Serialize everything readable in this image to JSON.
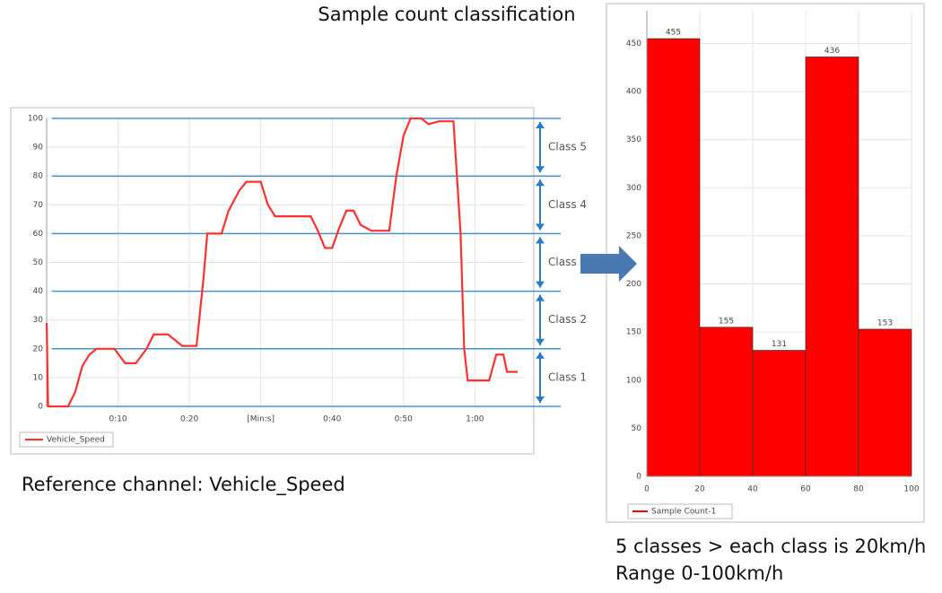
{
  "title": "Sample count classification",
  "caption_left": "Reference channel: Vehicle_Speed",
  "caption_right": [
    "5 classes > each class is 20km/h",
    "Range 0-100km/h"
  ],
  "chart_data": [
    {
      "type": "line",
      "x": [
        0,
        0.2,
        3,
        4,
        5,
        6,
        7,
        9.5,
        11,
        12.5,
        14,
        15,
        17,
        19,
        21,
        22,
        22.5,
        24.5,
        25.5,
        27,
        28,
        30,
        31,
        32,
        37,
        38,
        39,
        40,
        41,
        42,
        43,
        44,
        45.5,
        48,
        49,
        50,
        51,
        52.5,
        53.5,
        55,
        57,
        58,
        58.5,
        59,
        62,
        63,
        64,
        64.5,
        66
      ],
      "series": [
        {
          "name": "Vehicle_Speed",
          "color": "#ff3030",
          "values": [
            29,
            0,
            0,
            5,
            14,
            18,
            20,
            20,
            15,
            15,
            20,
            25,
            25,
            21,
            21,
            45,
            60,
            60,
            68,
            75,
            78,
            78,
            70,
            66,
            66,
            61,
            55,
            55,
            62,
            68,
            68,
            63,
            61,
            61,
            80,
            94,
            100,
            100,
            98,
            99,
            99,
            60,
            20,
            9,
            9,
            18,
            18,
            12,
            12
          ]
        }
      ],
      "xlim": [
        0,
        67
      ],
      "xticks": [
        {
          "value": 10,
          "label": "0:10"
        },
        {
          "value": 20,
          "label": "0:20"
        },
        {
          "value": 30,
          "label": "[Min:s]"
        },
        {
          "value": 40,
          "label": "0:40"
        },
        {
          "value": 50,
          "label": "0:50"
        },
        {
          "value": 60,
          "label": "1:00"
        }
      ],
      "ylim": [
        0,
        100
      ],
      "yticks": [
        0,
        10,
        20,
        30,
        40,
        50,
        60,
        70,
        80,
        90,
        100
      ],
      "grid": true,
      "class_boundaries": [
        0,
        20,
        40,
        60,
        80,
        100
      ],
      "class_color": "#4a90d0",
      "class_labels": [
        "Class 1",
        "Class 2",
        "Class",
        "Class 4",
        "Class 5"
      ]
    },
    {
      "type": "histogram",
      "bins": [
        0,
        20,
        40,
        60,
        80,
        100
      ],
      "series": [
        {
          "name": "Sample Count-1",
          "color": "#ff0000",
          "values": [
            455,
            155,
            131,
            436,
            153
          ]
        }
      ],
      "xlim": [
        0,
        100
      ],
      "xticks": [
        0,
        20,
        40,
        60,
        80,
        100
      ],
      "ylim": [
        0,
        484
      ],
      "yticks": [
        0,
        50,
        100,
        150,
        200,
        250,
        300,
        350,
        400,
        450
      ],
      "grid": true
    }
  ]
}
